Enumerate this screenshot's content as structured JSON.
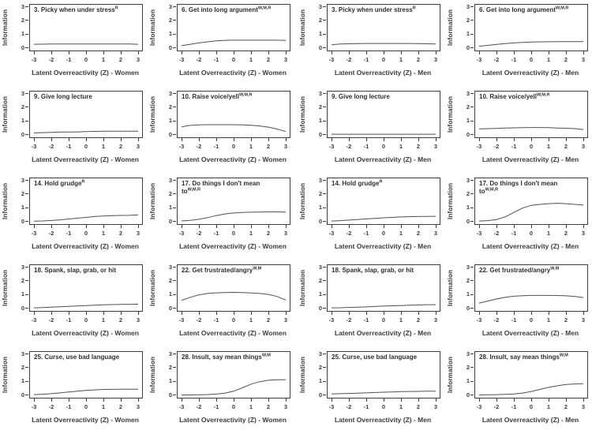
{
  "axes": {
    "ylabel": "Information",
    "ylim": [
      0,
      3
    ],
    "xlim": [
      -3,
      3
    ],
    "yticks": [
      0,
      1,
      2,
      3
    ],
    "xticks": [
      -3,
      -2,
      -1,
      0,
      1,
      2,
      3
    ]
  },
  "groups": {
    "women_xlabel": "Latent Overreactivity (Z) - Women",
    "men_xlabel": "Latent Overreactivity (Z) - Men"
  },
  "colors": {
    "curve": "#4f4f4f",
    "frame": "#3d3d3d",
    "text": "#383838"
  },
  "chart_data": [
    {
      "type": "line",
      "title": "3. Picky when under stress",
      "title_line2": "",
      "superscript": "R",
      "xlabel": "Latent Overreactivity (Z) - Women",
      "x": [
        -3,
        -2.5,
        -2,
        -1.5,
        -1,
        -0.5,
        0,
        0.5,
        1,
        1.5,
        2,
        2.5,
        3
      ],
      "y": [
        0.28,
        0.29,
        0.3,
        0.3,
        0.3,
        0.3,
        0.3,
        0.3,
        0.3,
        0.3,
        0.3,
        0.3,
        0.28
      ]
    },
    {
      "type": "line",
      "title": "6. Get into long argument",
      "title_line2": "",
      "superscript": "W,M,R",
      "xlabel": "Latent Overreactivity (Z) - Women",
      "x": [
        -3,
        -2.5,
        -2,
        -1.5,
        -1,
        -0.5,
        0,
        0.5,
        1,
        1.5,
        2,
        2.5,
        3
      ],
      "y": [
        0.18,
        0.28,
        0.38,
        0.46,
        0.53,
        0.57,
        0.58,
        0.58,
        0.58,
        0.58,
        0.58,
        0.58,
        0.56
      ]
    },
    {
      "type": "line",
      "title": "3. Picky when under stress",
      "title_line2": "",
      "superscript": "R",
      "xlabel": "Latent Overreactivity (Z) - Men",
      "x": [
        -3,
        -2.5,
        -2,
        -1.5,
        -1,
        -0.5,
        0,
        0.5,
        1,
        1.5,
        2,
        2.5,
        3
      ],
      "y": [
        0.25,
        0.3,
        0.32,
        0.33,
        0.34,
        0.34,
        0.34,
        0.34,
        0.34,
        0.34,
        0.33,
        0.32,
        0.3
      ]
    },
    {
      "type": "line",
      "title": "6. Get into long argument",
      "title_line2": "",
      "superscript": "W,M,R",
      "xlabel": "Latent Overreactivity (Z) - Men",
      "x": [
        -3,
        -2.5,
        -2,
        -1.5,
        -1,
        -0.5,
        0,
        0.5,
        1,
        1.5,
        2,
        2.5,
        3
      ],
      "y": [
        0.14,
        0.2,
        0.27,
        0.33,
        0.38,
        0.42,
        0.45,
        0.46,
        0.47,
        0.48,
        0.48,
        0.48,
        0.48
      ]
    },
    {
      "type": "line",
      "title": "9. Give long lecture",
      "title_line2": "",
      "superscript": "",
      "xlabel": "Latent Overreactivity (Z) - Women",
      "x": [
        -3,
        -2.5,
        -2,
        -1.5,
        -1,
        -0.5,
        0,
        0.5,
        1,
        1.5,
        2,
        2.5,
        3
      ],
      "y": [
        0.15,
        0.17,
        0.19,
        0.21,
        0.22,
        0.22,
        0.24,
        0.26,
        0.27,
        0.27,
        0.27,
        0.27,
        0.27
      ]
    },
    {
      "type": "line",
      "title": "10. Raise voice/yell",
      "title_line2": "",
      "superscript": "W,M,R",
      "xlabel": "Latent Overreactivity (Z) - Women",
      "x": [
        -3,
        -2.5,
        -2,
        -1.5,
        -1,
        -0.5,
        0,
        0.5,
        1,
        1.5,
        2,
        2.5,
        3
      ],
      "y": [
        0.6,
        0.7,
        0.74,
        0.75,
        0.75,
        0.75,
        0.75,
        0.74,
        0.71,
        0.66,
        0.57,
        0.43,
        0.25
      ]
    },
    {
      "type": "line",
      "title": "9. Give long lecture",
      "title_line2": "",
      "superscript": "",
      "xlabel": "Latent Overreactivity (Z) - Men",
      "x": [
        -3,
        -2.5,
        -2,
        -1.5,
        -1,
        -0.5,
        0,
        0.5,
        1,
        1.5,
        2,
        2.5,
        3
      ],
      "y": [
        0.05,
        0.05,
        0.05,
        0.05,
        0.05,
        0.05,
        0.05,
        0.05,
        0.05,
        0.05,
        0.05,
        0.05,
        0.05
      ]
    },
    {
      "type": "line",
      "title": "10. Raise voice/yell",
      "title_line2": "",
      "superscript": "W,M,R",
      "xlabel": "Latent Overreactivity (Z) - Men",
      "x": [
        -3,
        -2.5,
        -2,
        -1.5,
        -1,
        -0.5,
        0,
        0.5,
        1,
        1.5,
        2,
        2.5,
        3
      ],
      "y": [
        0.44,
        0.46,
        0.48,
        0.5,
        0.52,
        0.53,
        0.54,
        0.54,
        0.53,
        0.51,
        0.49,
        0.46,
        0.4
      ]
    },
    {
      "type": "line",
      "title": "14. Hold grudge",
      "title_line2": "",
      "superscript": "R",
      "xlabel": "Latent Overreactivity (Z) - Women",
      "x": [
        -3,
        -2.5,
        -2,
        -1.5,
        -1,
        -0.5,
        0,
        0.5,
        1,
        1.5,
        2,
        2.5,
        3
      ],
      "y": [
        0.04,
        0.06,
        0.09,
        0.14,
        0.2,
        0.26,
        0.32,
        0.38,
        0.42,
        0.45,
        0.46,
        0.47,
        0.5
      ]
    },
    {
      "type": "line",
      "title": "17. Do things I don't mean",
      "title_line2": "to",
      "superscript": "W,M,R",
      "xlabel": "Latent Overreactivity (Z) - Women",
      "x": [
        -3,
        -2.5,
        -2,
        -1.5,
        -1,
        -0.5,
        0,
        0.5,
        1,
        1.5,
        2,
        2.5,
        3
      ],
      "y": [
        0.06,
        0.1,
        0.18,
        0.3,
        0.45,
        0.57,
        0.64,
        0.68,
        0.7,
        0.71,
        0.72,
        0.72,
        0.7
      ]
    },
    {
      "type": "line",
      "title": "14. Hold grudge",
      "title_line2": "",
      "superscript": "R",
      "xlabel": "Latent Overreactivity (Z) - Men",
      "x": [
        -3,
        -2.5,
        -2,
        -1.5,
        -1,
        -0.5,
        0,
        0.5,
        1,
        1.5,
        2,
        2.5,
        3
      ],
      "y": [
        0.05,
        0.08,
        0.12,
        0.16,
        0.21,
        0.25,
        0.29,
        0.32,
        0.35,
        0.37,
        0.38,
        0.39,
        0.4
      ]
    },
    {
      "type": "line",
      "title": "17. Do things I don't mean",
      "title_line2": "to",
      "superscript": "W,M,R",
      "xlabel": "Latent Overreactivity (Z) - Men",
      "x": [
        -3,
        -2.5,
        -2,
        -1.5,
        -1,
        -0.5,
        0,
        0.5,
        1,
        1.5,
        2,
        2.5,
        3
      ],
      "y": [
        0.05,
        0.08,
        0.16,
        0.35,
        0.68,
        1.0,
        1.2,
        1.27,
        1.32,
        1.35,
        1.32,
        1.27,
        1.22
      ]
    },
    {
      "type": "line",
      "title": "18. Spank, slap, grab, or hit",
      "title_line2": "",
      "superscript": "",
      "xlabel": "Latent Overreactivity (Z) - Women",
      "x": [
        -3,
        -2.5,
        -2,
        -1.5,
        -1,
        -0.5,
        0,
        0.5,
        1,
        1.5,
        2,
        2.5,
        3
      ],
      "y": [
        0.05,
        0.07,
        0.1,
        0.13,
        0.16,
        0.19,
        0.22,
        0.25,
        0.27,
        0.29,
        0.3,
        0.31,
        0.32
      ]
    },
    {
      "type": "line",
      "title": "22. Get frustrated/angry",
      "title_line2": "",
      "superscript": "W,M",
      "xlabel": "Latent Overreactivity (Z) - Women",
      "x": [
        -3,
        -2.5,
        -2,
        -1.5,
        -1,
        -0.5,
        0,
        0.5,
        1,
        1.5,
        2,
        2.5,
        3
      ],
      "y": [
        0.6,
        0.82,
        1.0,
        1.1,
        1.15,
        1.17,
        1.18,
        1.17,
        1.14,
        1.1,
        1.03,
        0.88,
        0.62
      ]
    },
    {
      "type": "line",
      "title": "18. Spank, slap, grab, or hit",
      "title_line2": "",
      "superscript": "",
      "xlabel": "Latent Overreactivity (Z) - Men",
      "x": [
        -3,
        -2.5,
        -2,
        -1.5,
        -1,
        -0.5,
        0,
        0.5,
        1,
        1.5,
        2,
        2.5,
        3
      ],
      "y": [
        0.05,
        0.06,
        0.08,
        0.1,
        0.12,
        0.15,
        0.18,
        0.2,
        0.22,
        0.25,
        0.26,
        0.28,
        0.28
      ]
    },
    {
      "type": "line",
      "title": "22. Get frustrated/angry",
      "title_line2": "",
      "superscript": "W,M",
      "xlabel": "Latent Overreactivity (Z) - Men",
      "x": [
        -3,
        -2.5,
        -2,
        -1.5,
        -1,
        -0.5,
        0,
        0.5,
        1,
        1.5,
        2,
        2.5,
        3
      ],
      "y": [
        0.4,
        0.55,
        0.7,
        0.82,
        0.9,
        0.94,
        0.96,
        0.96,
        0.96,
        0.95,
        0.93,
        0.89,
        0.8
      ]
    },
    {
      "type": "line",
      "title": "25. Curse, use bad language",
      "title_line2": "",
      "superscript": "",
      "xlabel": "Latent Overreactivity (Z) - Women",
      "x": [
        -3,
        -2.5,
        -2,
        -1.5,
        -1,
        -0.5,
        0,
        0.5,
        1,
        1.5,
        2,
        2.5,
        3
      ],
      "y": [
        0.05,
        0.08,
        0.12,
        0.18,
        0.24,
        0.3,
        0.36,
        0.4,
        0.43,
        0.44,
        0.45,
        0.45,
        0.45
      ]
    },
    {
      "type": "line",
      "title": "28. Insult, say mean things",
      "title_line2": "",
      "superscript": "W,M",
      "xlabel": "Latent Overreactivity (Z) - Women",
      "x": [
        -3,
        -2.5,
        -2,
        -1.5,
        -1,
        -0.5,
        0,
        0.5,
        1,
        1.5,
        2,
        2.5,
        3
      ],
      "y": [
        0.03,
        0.03,
        0.04,
        0.06,
        0.09,
        0.16,
        0.3,
        0.55,
        0.82,
        1.0,
        1.1,
        1.14,
        1.15
      ]
    },
    {
      "type": "line",
      "title": "25. Curse, use bad language",
      "title_line2": "",
      "superscript": "",
      "xlabel": "Latent Overreactivity (Z) - Men",
      "x": [
        -3,
        -2.5,
        -2,
        -1.5,
        -1,
        -0.5,
        0,
        0.5,
        1,
        1.5,
        2,
        2.5,
        3
      ],
      "y": [
        0.1,
        0.12,
        0.14,
        0.16,
        0.18,
        0.21,
        0.23,
        0.25,
        0.27,
        0.28,
        0.29,
        0.3,
        0.3
      ]
    },
    {
      "type": "line",
      "title": "28. Insult, say mean things",
      "title_line2": "",
      "superscript": "W,M",
      "xlabel": "Latent Overreactivity (Z) - Men",
      "x": [
        -3,
        -2.5,
        -2,
        -1.5,
        -1,
        -0.5,
        0,
        0.5,
        1,
        1.5,
        2,
        2.5,
        3
      ],
      "y": [
        0.03,
        0.04,
        0.05,
        0.07,
        0.1,
        0.17,
        0.28,
        0.43,
        0.58,
        0.7,
        0.79,
        0.83,
        0.85
      ]
    }
  ]
}
